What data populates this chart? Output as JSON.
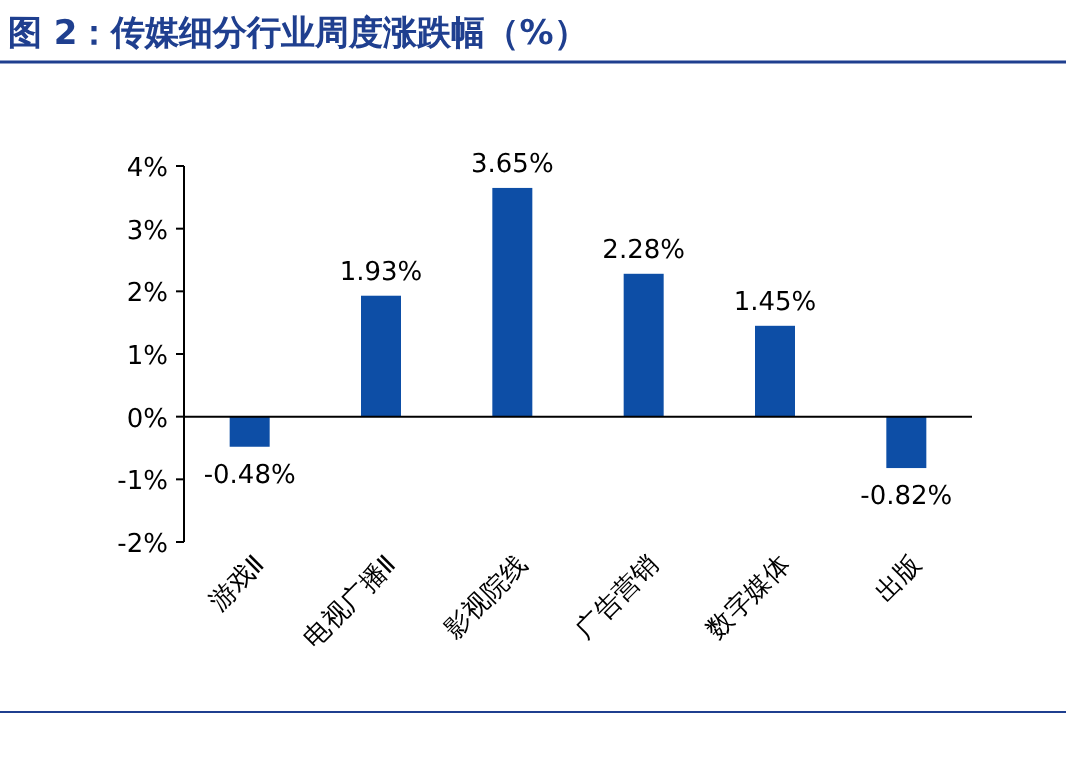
{
  "chart_data": {
    "type": "bar",
    "title": "图 2：传媒细分行业周度涨跌幅（%）",
    "categories": [
      "游戏Ⅱ",
      "电视广播Ⅱ",
      "影视院线",
      "广告营销",
      "数字媒体",
      "出版"
    ],
    "values": [
      -0.48,
      1.93,
      3.65,
      2.28,
      1.45,
      -0.82
    ],
    "value_labels": [
      "-0.48%",
      "1.93%",
      "3.65%",
      "2.28%",
      "1.45%",
      "-0.82%"
    ],
    "color": "#0d4ea6",
    "ylim": [
      -2,
      4
    ],
    "yticks": [
      {
        "value": -2,
        "label": "-2%"
      },
      {
        "value": -1,
        "label": "-1%"
      },
      {
        "value": 0,
        "label": "0%"
      },
      {
        "value": 1,
        "label": "1%"
      },
      {
        "value": 2,
        "label": "2%"
      },
      {
        "value": 3,
        "label": "3%"
      },
      {
        "value": 4,
        "label": "4%"
      }
    ]
  }
}
